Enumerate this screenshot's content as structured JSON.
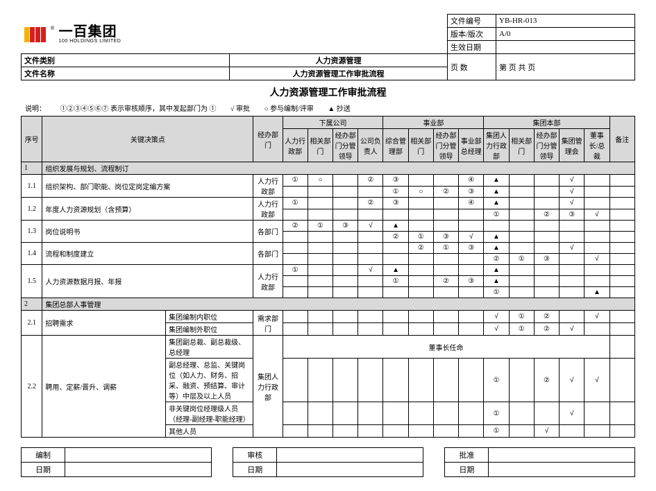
{
  "logo": {
    "cn": "一百集团",
    "en": "100 HOLDINGS LIMITED"
  },
  "doc_meta": {
    "doc_no_label": "文件编号",
    "doc_no": "YB-HR-013",
    "version_label": "版本/版次",
    "version": "A/0",
    "effective_label": "生效日期",
    "effective": "",
    "page_label": "页  数",
    "page_value": "第   页 共   页",
    "doc_class_label": "文件类别",
    "doc_class": "人力资源管理",
    "doc_name_label": "文件名称",
    "doc_name": "人力资源管理工作审批流程"
  },
  "title": "人力资源管理工作审批流程",
  "legend": {
    "note_label": "说明：",
    "note_text": "①②③④⑤⑥⑦ 表示审核顺序，其中发起部门为 ①",
    "l1": "√ 审批",
    "l2": "○ 参与编制/评审",
    "l3": "▲ 抄送"
  },
  "cols": {
    "seq": "序号",
    "key": "关键决策点",
    "dept": "经办部门",
    "g1": "下属公司",
    "g2": "事业部",
    "g3": "集团本部",
    "c1": "人力行政部",
    "c2": "相关部门",
    "c3": "经办部门分管领导",
    "c4": "公司负责人",
    "c5": "综合管理部",
    "c6": "相关部门",
    "c7": "经办部门分管领导",
    "c8": "事业部总经理",
    "c9": "集团人力行政部",
    "c10": "相关部门",
    "c11": "经办部门分管领导",
    "c12": "集团管理会",
    "c13": "董事长/总裁",
    "c14": "备注"
  },
  "rows": [
    {
      "type": "section",
      "seq": "1",
      "label": "组织发展与规划、流程制订"
    },
    {
      "type": "data",
      "seq": "1.1",
      "label": "组织架构、部门职能、岗位定岗定编方案",
      "dept": "人力行政部",
      "span": 2,
      "lines": [
        [
          "①",
          "○",
          "",
          "②",
          "③",
          "",
          "",
          "④",
          "▲",
          "",
          "",
          "√",
          ""
        ],
        [
          "",
          "",
          "",
          "",
          "①",
          "○",
          "②",
          "③",
          "▲",
          "",
          "",
          "√",
          ""
        ]
      ]
    },
    {
      "type": "data",
      "seq": "1.2",
      "label": "年度人力资源规划（含预算）",
      "dept": "人力行政部",
      "span": 2,
      "lines": [
        [
          "①",
          "",
          "",
          "②",
          "③",
          "",
          "",
          "④",
          "▲",
          "",
          "",
          "√",
          ""
        ],
        [
          "",
          "",
          "",
          "",
          "",
          "",
          "",
          "",
          "①",
          "",
          "②",
          "③",
          "√"
        ]
      ]
    },
    {
      "type": "data",
      "seq": "1.3",
      "label": "岗位说明书",
      "dept": "各部门",
      "span": 2,
      "lines": [
        [
          "②",
          "①",
          "③",
          "√",
          "▲",
          "",
          "",
          "",
          "",
          "",
          "",
          "",
          ""
        ],
        [
          "",
          "",
          "",
          "",
          "②",
          "①",
          "③",
          "√",
          "▲",
          "",
          "",
          "",
          ""
        ]
      ]
    },
    {
      "type": "data",
      "seq": "1.4",
      "label": "流程和制度建立",
      "dept": "各部门",
      "span": 2,
      "lines": [
        [
          "",
          "",
          "",
          "",
          "",
          "②",
          "①",
          "③",
          "▲",
          "",
          "",
          "√",
          ""
        ],
        [
          "",
          "",
          "",
          "",
          "",
          "",
          "",
          "",
          "②",
          "①",
          "③",
          "",
          "√"
        ]
      ]
    },
    {
      "type": "data",
      "seq": "1.5",
      "label": "人力资源数据月报、年报",
      "dept": "人力行政部",
      "span": 3,
      "lines": [
        [
          "①",
          "",
          "",
          "√",
          "▲",
          "",
          "",
          "",
          "▲",
          "",
          "",
          "",
          ""
        ],
        [
          "",
          "",
          "",
          "",
          "①",
          "",
          "②",
          "③",
          "▲",
          "",
          "",
          "",
          ""
        ],
        [
          "",
          "",
          "",
          "",
          "",
          "",
          "",
          "",
          "①",
          "",
          "",
          "",
          "▲"
        ]
      ]
    },
    {
      "type": "section",
      "seq": "2",
      "label": "集团总部人事管理"
    },
    {
      "type": "data2",
      "seq": "2.1",
      "label": "招聘需求",
      "sub": [
        {
          "t": "集团编制内职位",
          "cells": [
            "",
            "",
            "",
            "",
            "",
            "",
            "",
            "",
            "√",
            "①",
            "②",
            "",
            "√"
          ]
        },
        {
          "t": "集团编制外职位",
          "cells": [
            "",
            "",
            "",
            "",
            "",
            "",
            "",
            "",
            "√",
            "①",
            "②",
            "√",
            ""
          ]
        }
      ],
      "dept": "需求部门"
    },
    {
      "type": "bannerlabel",
      "seq": "2.2",
      "label": "聘用、定薪/晋升、调薪",
      "sub": [
        {
          "t": "集团副总裁、副总裁级、总经理",
          "banner": "董事长任命"
        },
        {
          "t": "副总经理、总监、关键岗位（如人力、财务、招采、融资、预结算、审计等）中层及以上人员",
          "cells": [
            "",
            "",
            "",
            "",
            "",
            "",
            "",
            "",
            "①",
            "",
            "②",
            "√",
            "√"
          ]
        },
        {
          "t": "非关键岗位经理级人员（经理-副经理-职能经理）",
          "cells": [
            "",
            "",
            "",
            "",
            "",
            "",
            "",
            "",
            "①",
            "",
            "",
            "√",
            ""
          ]
        },
        {
          "t": "其他人员",
          "cells": [
            "",
            "",
            "",
            "",
            "",
            "",
            "",
            "",
            "①",
            "",
            "√",
            "",
            ""
          ]
        }
      ],
      "dept": "集团人力行政部"
    }
  ],
  "footer": {
    "make_label": "编制",
    "review_label": "审核",
    "approve_label": "批准",
    "date_label": "日期"
  },
  "symbols": {
    "check": "√",
    "circle": "○",
    "triangle": "▲"
  }
}
